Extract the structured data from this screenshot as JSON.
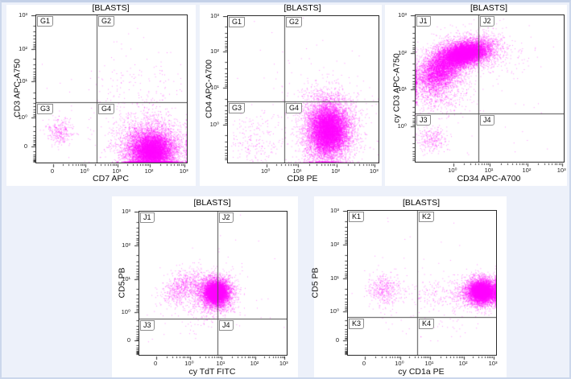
{
  "window": {
    "background": "#edf1fa",
    "card_background": "#ffffff",
    "frame_border": "#ccd7ec",
    "dot_color": "#ff00ff",
    "plot_border": "#2b2b2b",
    "gate_color": "#4d4d4d",
    "text_color": "#111111"
  },
  "chart_data": [
    {
      "type": "scatter",
      "title": "[BLASTS]",
      "xlabel": "CD7 APC",
      "ylabel": "CD3 APC-A750",
      "x_axis_range": [
        "0",
        "10³"
      ],
      "y_axis_range": [
        "0",
        "10³"
      ],
      "x_ticks": [
        {
          "label": "0",
          "f": 0.112
        },
        {
          "label": "10⁰",
          "f": 0.326
        },
        {
          "label": "10¹",
          "f": 0.54
        },
        {
          "label": "10²",
          "f": 0.754
        },
        {
          "label": "10³",
          "f": 0.985
        }
      ],
      "y_ticks": [
        {
          "label": "10³",
          "f": 0.0
        },
        {
          "label": "10²",
          "f": 0.23
        },
        {
          "label": "10¹",
          "f": 0.448
        },
        {
          "label": "10⁰",
          "f": 0.694
        },
        {
          "label": "0",
          "f": 0.891
        }
      ],
      "quadrant_labels": [
        "G1",
        "G2",
        "G3",
        "G4"
      ],
      "gate": {
        "x_frac": 0.401,
        "y_frac": 0.59
      },
      "seed": 101,
      "populations": [
        {
          "name": "CD7-positive blasts (G4, dense)",
          "cx": 0.765,
          "cy": 0.92,
          "sx": 0.09,
          "sy": 0.08,
          "rho": 0,
          "n": 5500
        },
        {
          "name": "G4 halo",
          "cx": 0.74,
          "cy": 0.82,
          "sx": 0.13,
          "sy": 0.09,
          "rho": 0,
          "n": 900
        },
        {
          "name": "double-negative cluster (G3)",
          "cx": 0.155,
          "cy": 0.79,
          "sx": 0.045,
          "sy": 0.05,
          "rho": 0,
          "n": 300
        },
        {
          "name": "CD3-positive scatter (G2)",
          "cx": 0.72,
          "cy": 0.45,
          "sx": 0.16,
          "sy": 0.14,
          "rho": 0,
          "n": 140,
          "clip": true
        },
        {
          "name": "noise",
          "cx": 0.5,
          "cy": 0.55,
          "sx": 0.3,
          "sy": 0.25,
          "n": 60,
          "clip": true
        }
      ]
    },
    {
      "type": "scatter",
      "title": "[BLASTS]",
      "xlabel": "CD8 PE",
      "ylabel": "CD4 APC-A700",
      "x_axis_range": [
        "10⁰",
        "10³"
      ],
      "y_axis_range": [
        "10⁰",
        "10³"
      ],
      "x_ticks": [
        {
          "label": "10⁰",
          "f": 0.255
        },
        {
          "label": "10¹",
          "f": 0.465
        },
        {
          "label": "10²",
          "f": 0.72
        },
        {
          "label": "10³",
          "f": 0.975
        }
      ],
      "y_ticks": [
        {
          "label": "10³",
          "f": 0.0
        },
        {
          "label": "10²",
          "f": 0.24
        },
        {
          "label": "10¹",
          "f": 0.49
        },
        {
          "label": "10⁰",
          "f": 0.74
        }
      ],
      "quadrant_labels": [
        "G1",
        "G2",
        "G3",
        "G4"
      ],
      "gate": {
        "x_frac": 0.374,
        "y_frac": 0.582
      },
      "seed": 138,
      "populations": [
        {
          "name": "CD8-positive blasts (G4, dense)",
          "cx": 0.665,
          "cy": 0.78,
          "sx": 0.08,
          "sy": 0.11,
          "rho": 0,
          "n": 6000
        },
        {
          "name": "G4/G2 halo",
          "cx": 0.66,
          "cy": 0.72,
          "sx": 0.12,
          "sy": 0.13,
          "rho": 0,
          "n": 900
        },
        {
          "name": "CD8-negative scatter (G3)",
          "cx": 0.16,
          "cy": 0.86,
          "sx": 0.11,
          "sy": 0.1,
          "rho": 0,
          "n": 240,
          "clip": true
        },
        {
          "name": "upper strays",
          "cx": 0.5,
          "cy": 0.4,
          "sx": 0.25,
          "sy": 0.2,
          "n": 50,
          "clip": true
        }
      ]
    },
    {
      "type": "scatter",
      "title": "[BLASTS]",
      "xlabel": "CD34 APC-A700",
      "ylabel": "cy CD3 APC-A750",
      "x_axis_range": [
        "10⁰",
        "10³"
      ],
      "y_axis_range": [
        "10⁰",
        "10³"
      ],
      "x_ticks": [
        {
          "label": "10⁰",
          "f": 0.255
        },
        {
          "label": "10¹",
          "f": 0.5
        },
        {
          "label": "10²",
          "f": 0.755
        },
        {
          "label": "10³",
          "f": 0.99
        }
      ],
      "y_ticks": [
        {
          "label": "10³",
          "f": 0.0
        },
        {
          "label": "10²",
          "f": 0.258
        },
        {
          "label": "10¹",
          "f": 0.505
        },
        {
          "label": "10⁰",
          "f": 0.758
        }
      ],
      "quadrant_labels": [
        "J1",
        "J2",
        "J3",
        "J4"
      ],
      "gate": {
        "x_frac": 0.424,
        "y_frac": 0.67
      },
      "seed": 175,
      "populations": [
        {
          "name": "cyCD3-positive blasts core (J1)",
          "cx": 0.33,
          "cy": 0.26,
          "sx": 0.095,
          "sy": 0.05,
          "rho": -0.35,
          "n": 5500
        },
        {
          "name": "J1 spread",
          "cx": 0.17,
          "cy": 0.37,
          "sx": 0.105,
          "sy": 0.1,
          "rho": -0.45,
          "n": 2800
        },
        {
          "name": "CD34-positive spill (J2)",
          "cx": 0.47,
          "cy": 0.24,
          "sx": 0.05,
          "sy": 0.06,
          "rho": 0,
          "n": 260,
          "clip": true
        },
        {
          "name": "J2 sparse",
          "cx": 0.62,
          "cy": 0.28,
          "sx": 0.1,
          "sy": 0.1,
          "n": 90,
          "clip": true
        },
        {
          "name": "J1 lower tail",
          "cx": 0.18,
          "cy": 0.56,
          "sx": 0.1,
          "sy": 0.07,
          "n": 250,
          "clip": true
        },
        {
          "name": "cyCD3-negative cluster (J3)",
          "cx": 0.105,
          "cy": 0.84,
          "sx": 0.05,
          "sy": 0.045,
          "n": 280
        },
        {
          "name": "noise",
          "cx": 0.5,
          "cy": 0.5,
          "sx": 0.3,
          "sy": 0.3,
          "n": 60,
          "clip": true
        }
      ]
    },
    {
      "type": "scatter",
      "title": "[BLASTS]",
      "xlabel": "cy TdT FITC",
      "ylabel": "CD5 PB",
      "x_axis_range": [
        "0",
        "10³"
      ],
      "y_axis_range": [
        "0",
        "10³"
      ],
      "x_ticks": [
        {
          "label": "0",
          "f": 0.115
        },
        {
          "label": "10⁰",
          "f": 0.344
        },
        {
          "label": "10¹",
          "f": 0.557
        },
        {
          "label": "10²",
          "f": 0.787
        },
        {
          "label": "10³",
          "f": 0.985
        }
      ],
      "y_ticks": [
        {
          "label": "10³",
          "f": 0.0
        },
        {
          "label": "10²",
          "f": 0.235
        },
        {
          "label": "10¹",
          "f": 0.47
        },
        {
          "label": "10⁰",
          "f": 0.7
        },
        {
          "label": "0",
          "f": 0.9
        }
      ],
      "quadrant_labels": [
        "J1",
        "J2",
        "J3",
        "J4"
      ],
      "gate": {
        "x_frac": 0.53,
        "y_frac": 0.747
      },
      "seed": 212,
      "populations": [
        {
          "name": "CD5+/TdT+ blasts (dense)",
          "cx": 0.52,
          "cy": 0.565,
          "sx": 0.05,
          "sy": 0.05,
          "rho": 0,
          "n": 4500
        },
        {
          "name": "main halo",
          "cx": 0.5,
          "cy": 0.57,
          "sx": 0.08,
          "sy": 0.075,
          "rho": 0,
          "n": 800
        },
        {
          "name": "TdT-dim cluster (J1)",
          "cx": 0.285,
          "cy": 0.53,
          "sx": 0.065,
          "sy": 0.06,
          "rho": -0.3,
          "n": 650
        },
        {
          "name": "bridge",
          "cx": 0.4,
          "cy": 0.52,
          "sx": 0.06,
          "sy": 0.05,
          "n": 150
        },
        {
          "name": "sparse below",
          "cx": 0.45,
          "cy": 0.72,
          "sx": 0.12,
          "sy": 0.06,
          "n": 80,
          "clip": true
        },
        {
          "name": "noise",
          "cx": 0.5,
          "cy": 0.55,
          "sx": 0.28,
          "sy": 0.22,
          "n": 50,
          "clip": true
        }
      ]
    },
    {
      "type": "scatter",
      "title": "[BLASTS]",
      "xlabel": "cy CD1a PE",
      "ylabel": "CD5 PB",
      "x_axis_range": [
        "0",
        "10³"
      ],
      "y_axis_range": [
        "0",
        "10³"
      ],
      "x_ticks": [
        {
          "label": "0",
          "f": 0.114
        },
        {
          "label": "10⁰",
          "f": 0.353
        },
        {
          "label": "10¹",
          "f": 0.554
        },
        {
          "label": "10²",
          "f": 0.783
        },
        {
          "label": "10³",
          "f": 0.984
        }
      ],
      "y_ticks": [
        {
          "label": "10³",
          "f": 0.0
        },
        {
          "label": "10²",
          "f": 0.235
        },
        {
          "label": "10¹",
          "f": 0.47
        },
        {
          "label": "10⁰",
          "f": 0.7
        },
        {
          "label": "0",
          "f": 0.9
        }
      ],
      "quadrant_labels": [
        "K1",
        "K2",
        "K3",
        "K4"
      ],
      "gate": {
        "x_frac": 0.467,
        "y_frac": 0.737
      },
      "seed": 249,
      "populations": [
        {
          "name": "CD1a-bright blasts (K2, dense)",
          "cx": 0.905,
          "cy": 0.56,
          "sx": 0.055,
          "sy": 0.045,
          "rho": 0,
          "n": 4500
        },
        {
          "name": "K2 halo",
          "cx": 0.88,
          "cy": 0.565,
          "sx": 0.085,
          "sy": 0.06,
          "rho": 0,
          "n": 600
        },
        {
          "name": "CD1a-negative cluster (K1)",
          "cx": 0.245,
          "cy": 0.545,
          "sx": 0.055,
          "sy": 0.055,
          "rho": 0,
          "n": 420
        },
        {
          "name": "intermediate band",
          "cx": 0.62,
          "cy": 0.575,
          "sx": 0.13,
          "sy": 0.05,
          "n": 200,
          "clip": true
        },
        {
          "name": "sparse below",
          "cx": 0.6,
          "cy": 0.78,
          "sx": 0.18,
          "sy": 0.08,
          "n": 50,
          "clip": true
        },
        {
          "name": "noise",
          "cx": 0.5,
          "cy": 0.5,
          "sx": 0.28,
          "sy": 0.25,
          "n": 40,
          "clip": true
        }
      ]
    }
  ]
}
